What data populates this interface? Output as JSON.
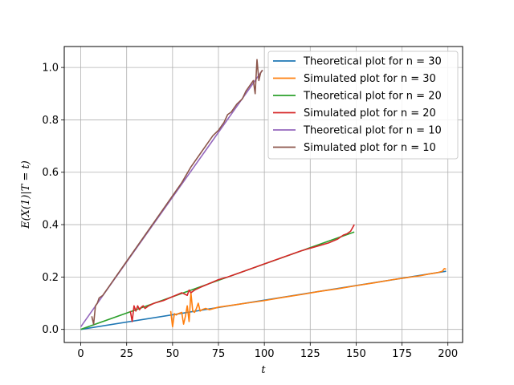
{
  "chart_data": {
    "type": "line",
    "xlabel": "t",
    "ylabel": "E(X(1)|T = t)",
    "xlim": [
      -9,
      208
    ],
    "ylim": [
      -0.05,
      1.08
    ],
    "xticks": [
      0,
      25,
      50,
      75,
      100,
      125,
      150,
      175,
      200
    ],
    "xtick_labels": [
      "0",
      "25",
      "50",
      "75",
      "100",
      "125",
      "150",
      "175",
      "200"
    ],
    "yticks": [
      0.0,
      0.2,
      0.4,
      0.6,
      0.8,
      1.0
    ],
    "ytick_labels": [
      "0.0",
      "0.2",
      "0.4",
      "0.6",
      "0.8",
      "1.0"
    ],
    "grid": true,
    "legend_position": "top-right",
    "series": [
      {
        "name": "Theoretical plot for n = 30",
        "color": "#1f77b4",
        "x": [
          0,
          199
        ],
        "y": [
          0.0,
          0.222
        ]
      },
      {
        "name": "Simulated plot for n = 30",
        "color": "#ff7f0e",
        "x": [
          49,
          50,
          51,
          52,
          53,
          55,
          56,
          57,
          58,
          59,
          60,
          61,
          62,
          63,
          64,
          65,
          66,
          68,
          70,
          75,
          80,
          85,
          90,
          95,
          100,
          110,
          120,
          130,
          140,
          150,
          160,
          170,
          180,
          185,
          190,
          193,
          195,
          197,
          198,
          199
        ],
        "y": [
          0.07,
          0.01,
          0.06,
          0.055,
          0.06,
          0.065,
          0.02,
          0.05,
          0.09,
          0.03,
          0.14,
          0.07,
          0.065,
          0.08,
          0.1,
          0.07,
          0.075,
          0.08,
          0.075,
          0.085,
          0.09,
          0.095,
          0.1,
          0.105,
          0.11,
          0.122,
          0.133,
          0.145,
          0.155,
          0.167,
          0.178,
          0.19,
          0.2,
          0.205,
          0.212,
          0.215,
          0.218,
          0.222,
          0.232,
          0.23
        ]
      },
      {
        "name": "Theoretical plot for n = 20",
        "color": "#2ca02c",
        "x": [
          0,
          149
        ],
        "y": [
          0.0,
          0.372
        ]
      },
      {
        "name": "Simulated plot for n = 20",
        "color": "#d62728",
        "x": [
          27,
          28,
          29,
          30,
          31,
          32,
          33,
          34,
          35,
          37,
          40,
          45,
          50,
          55,
          58,
          59,
          60,
          62,
          65,
          70,
          75,
          80,
          90,
          100,
          110,
          120,
          125,
          130,
          135,
          140,
          143,
          145,
          147,
          149
        ],
        "y": [
          0.07,
          0.03,
          0.09,
          0.07,
          0.09,
          0.075,
          0.085,
          0.09,
          0.08,
          0.09,
          0.1,
          0.11,
          0.125,
          0.14,
          0.13,
          0.15,
          0.14,
          0.15,
          0.16,
          0.175,
          0.19,
          0.2,
          0.225,
          0.25,
          0.275,
          0.3,
          0.31,
          0.32,
          0.33,
          0.345,
          0.36,
          0.365,
          0.375,
          0.4
        ]
      },
      {
        "name": "Theoretical plot for n = 10",
        "color": "#9467bd",
        "x": [
          0,
          99
        ],
        "y": [
          0.01,
          0.99
        ]
      },
      {
        "name": "Simulated plot for n = 10",
        "color": "#8c564b",
        "x": [
          6,
          7,
          8,
          9,
          10,
          12,
          15,
          20,
          25,
          30,
          35,
          40,
          45,
          50,
          55,
          60,
          65,
          70,
          72,
          75,
          78,
          80,
          82,
          85,
          88,
          90,
          92,
          94,
          95,
          96,
          97,
          98,
          99
        ],
        "y": [
          0.05,
          0.02,
          0.09,
          0.1,
          0.12,
          0.13,
          0.16,
          0.21,
          0.26,
          0.31,
          0.36,
          0.41,
          0.46,
          0.51,
          0.56,
          0.62,
          0.67,
          0.72,
          0.74,
          0.76,
          0.79,
          0.82,
          0.83,
          0.86,
          0.88,
          0.91,
          0.93,
          0.95,
          0.9,
          1.03,
          0.95,
          0.98,
          0.99
        ]
      }
    ]
  }
}
